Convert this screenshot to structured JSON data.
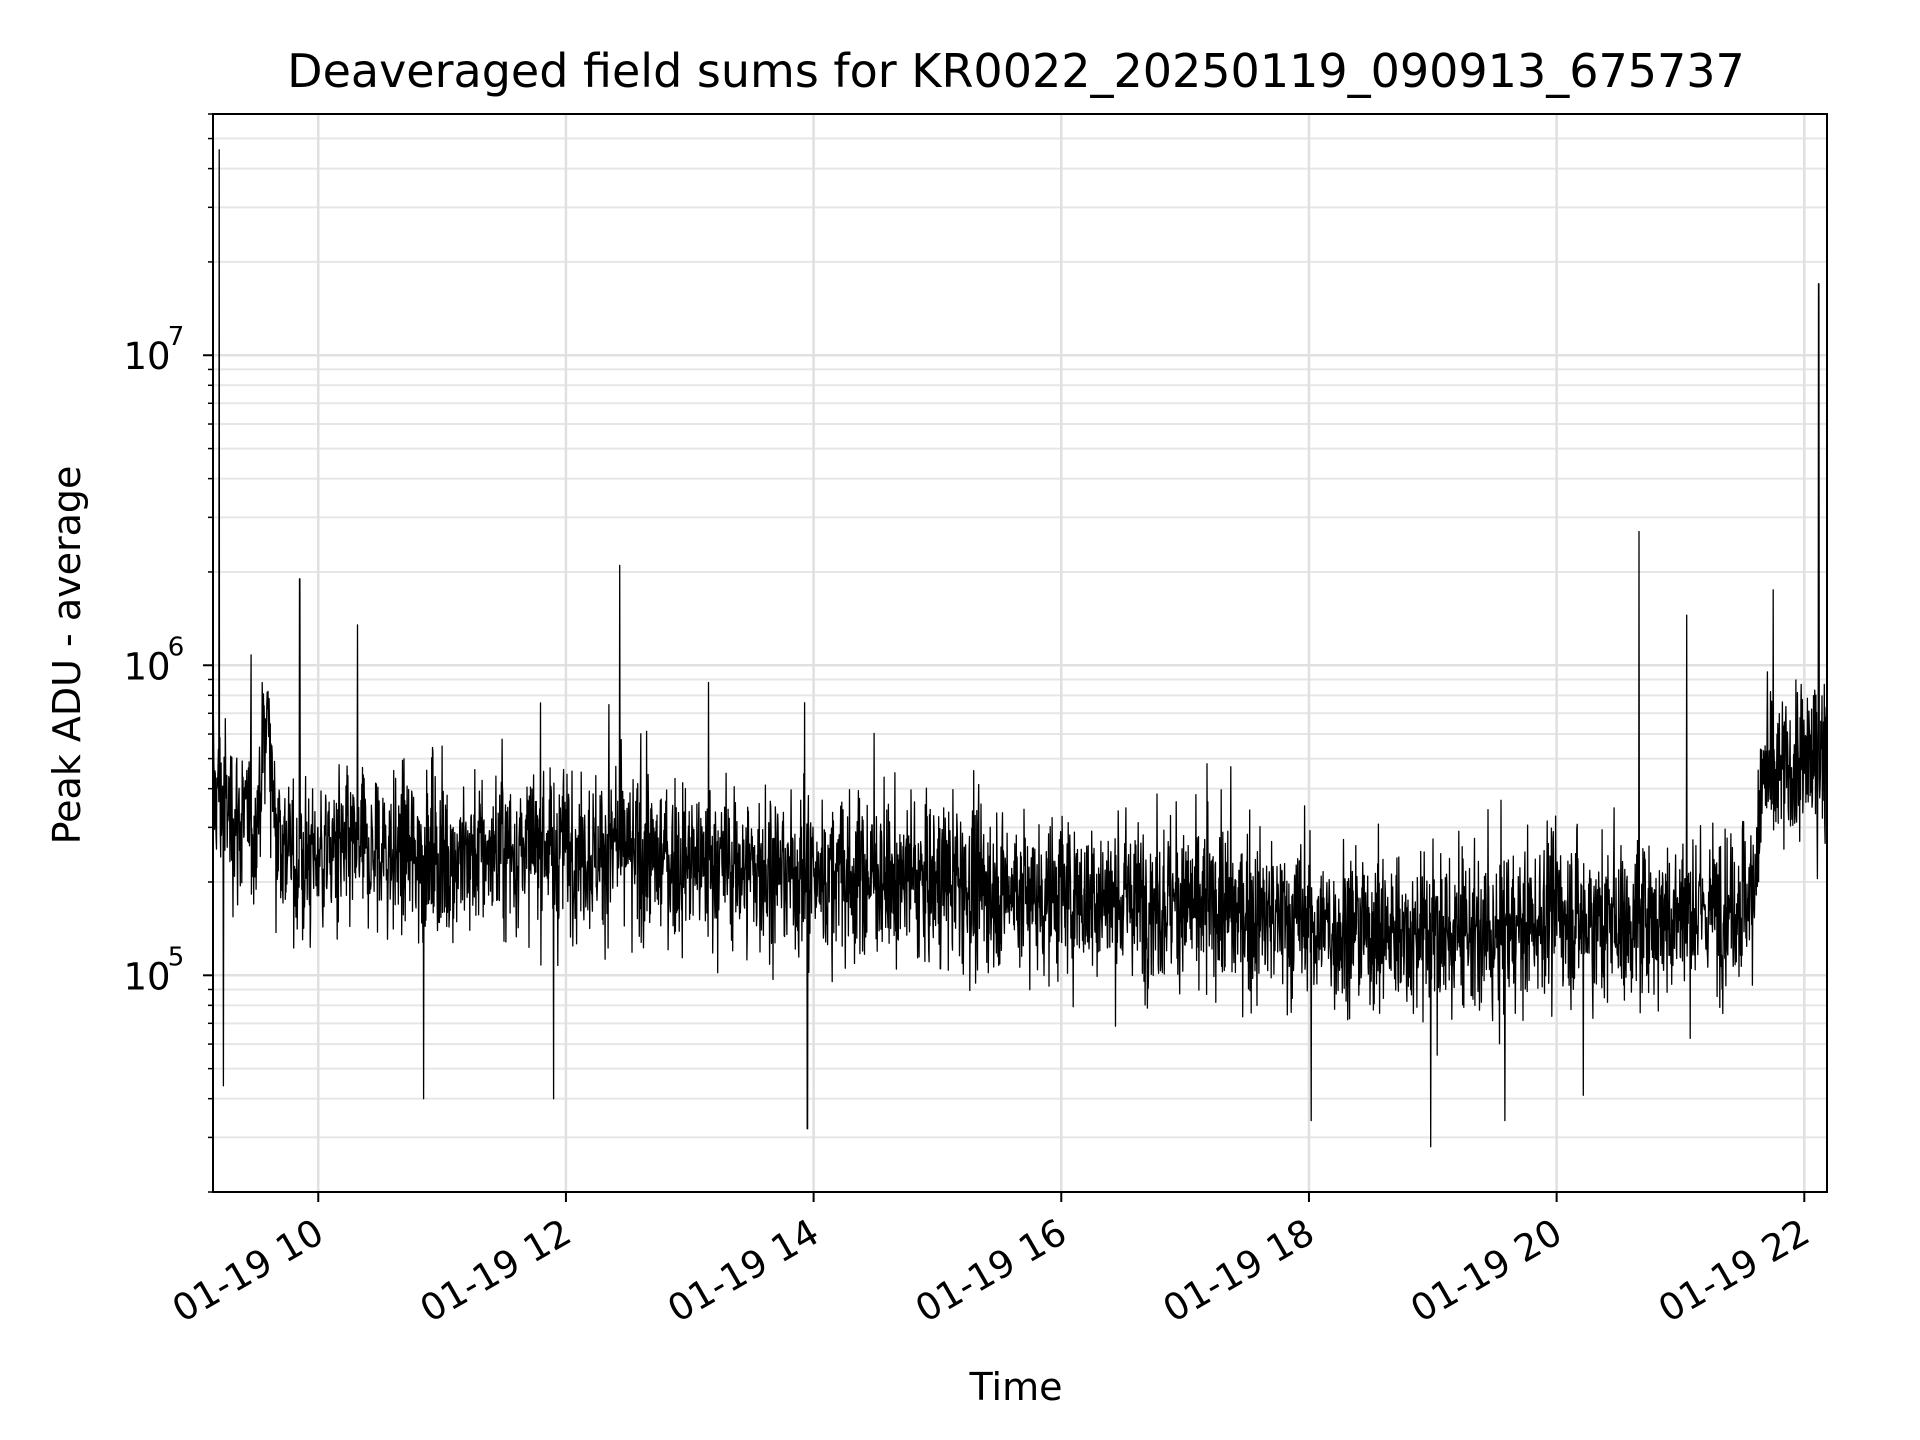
{
  "chart_data": {
    "type": "line",
    "title": "Deaveraged field sums for KR0022_20250119_090913_675737",
    "xlabel": "Time",
    "ylabel": "Peak ADU - average",
    "x_scale": "time",
    "y_scale": "log",
    "xlim": [
      "01-19 09:09",
      "01-19 22:11"
    ],
    "ylim": [
      20000,
      60000000
    ],
    "grid": true,
    "legend": "none",
    "x_ticks": [
      {
        "label": "01-19 10",
        "t": "01-19 10:00"
      },
      {
        "label": "01-19 12",
        "t": "01-19 12:00"
      },
      {
        "label": "01-19 14",
        "t": "01-19 14:00"
      },
      {
        "label": "01-19 16",
        "t": "01-19 16:00"
      },
      {
        "label": "01-19 18",
        "t": "01-19 18:00"
      },
      {
        "label": "01-19 20",
        "t": "01-19 20:00"
      },
      {
        "label": "01-19 22",
        "t": "01-19 22:00"
      }
    ],
    "y_ticks": [
      {
        "base": "10",
        "exp": "5",
        "value": 100000
      },
      {
        "base": "10",
        "exp": "6",
        "value": 1000000
      },
      {
        "base": "10",
        "exp": "7",
        "value": 10000000
      }
    ],
    "series": [
      {
        "color": "#000000",
        "baseline": [
          [
            "01-19 09:09",
            400000
          ],
          [
            "01-19 09:20",
            320000
          ],
          [
            "01-19 09:30",
            300000
          ],
          [
            "01-19 09:35",
            720000
          ],
          [
            "01-19 09:40",
            300000
          ],
          [
            "01-19 09:50",
            220000
          ],
          [
            "01-19 10:00",
            250000
          ],
          [
            "01-19 11:00",
            240000
          ],
          [
            "01-19 12:00",
            260000
          ],
          [
            "01-19 13:00",
            230000
          ],
          [
            "01-19 14:00",
            210000
          ],
          [
            "01-19 15:00",
            200000
          ],
          [
            "01-19 16:00",
            180000
          ],
          [
            "01-19 17:00",
            170000
          ],
          [
            "01-19 18:00",
            145000
          ],
          [
            "01-19 19:00",
            135000
          ],
          [
            "01-19 19:30",
            130000
          ],
          [
            "01-19 20:00",
            160000
          ],
          [
            "01-19 20:30",
            145000
          ],
          [
            "01-19 21:00",
            155000
          ],
          [
            "01-19 21:35",
            180000
          ],
          [
            "01-19 21:40",
            420000
          ],
          [
            "01-19 22:11",
            520000
          ]
        ],
        "spikes": [
          [
            "01-19 09:12",
            46000000
          ],
          [
            "01-19 09:51",
            1900000
          ],
          [
            "01-19 10:19",
            1350000
          ],
          [
            "01-19 12:26",
            2100000
          ],
          [
            "01-19 13:09",
            880000
          ],
          [
            "01-19 20:40",
            2700000
          ],
          [
            "01-19 21:03",
            1450000
          ],
          [
            "01-19 21:45",
            1750000
          ],
          [
            "01-19 22:07",
            17000000
          ],
          [
            "01-19 09:14",
            44000
          ],
          [
            "01-19 10:51",
            40000
          ],
          [
            "01-19 11:54",
            40000
          ],
          [
            "01-19 13:57",
            32000
          ],
          [
            "01-19 18:01",
            34000
          ],
          [
            "01-19 18:59",
            28000
          ],
          [
            "01-19 19:35",
            34000
          ],
          [
            "01-19 20:13",
            41000
          ]
        ]
      }
    ]
  }
}
